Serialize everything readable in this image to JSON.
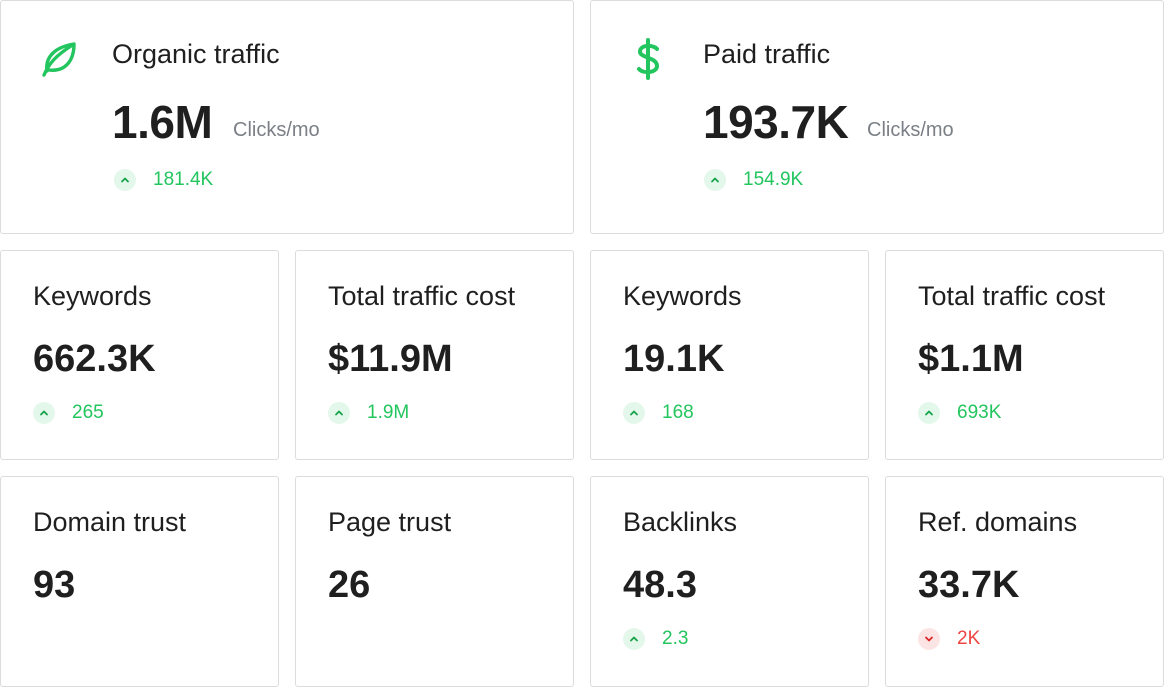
{
  "organic": {
    "title": "Organic traffic",
    "value": "1.6M",
    "unit": "Clicks/mo",
    "delta": "181.4K",
    "icon": "leaf-icon"
  },
  "paid": {
    "title": "Paid traffic",
    "value": "193.7K",
    "unit": "Clicks/mo",
    "delta": "154.9K",
    "icon": "dollar-icon"
  },
  "metrics": [
    {
      "title": "Keywords",
      "value": "662.3K",
      "delta": "265",
      "direction": "up"
    },
    {
      "title": "Total traffic cost",
      "value": "$11.9M",
      "delta": "1.9M",
      "direction": "up"
    },
    {
      "title": "Keywords",
      "value": "19.1K",
      "delta": "168",
      "direction": "up"
    },
    {
      "title": "Total traffic cost",
      "value": "$1.1M",
      "delta": "693K",
      "direction": "up"
    },
    {
      "title": "Domain trust",
      "value": "93"
    },
    {
      "title": "Page trust",
      "value": "26"
    },
    {
      "title": "Backlinks",
      "value": "48.3",
      "delta": "2.3",
      "direction": "up"
    },
    {
      "title": "Ref. domains",
      "value": "33.7K",
      "delta": "2K",
      "direction": "down"
    }
  ],
  "colors": {
    "positive": "#22c55e",
    "negative": "#ef4444",
    "text": "#1f1f1f",
    "muted": "#7b7f86",
    "border": "#dcdcdc"
  }
}
